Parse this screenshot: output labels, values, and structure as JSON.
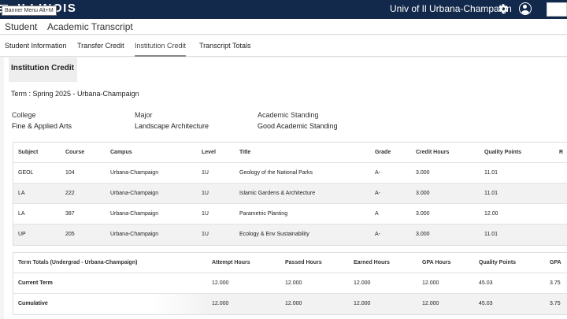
{
  "topbar": {
    "logo": "ILLINOIS",
    "tooltip": "Banner Menu Alt+M",
    "institution": "Univ of Il Urbana-Champaign",
    "icons": [
      "menu-icon",
      "gear-icon",
      "user-icon"
    ],
    "color": "#13294b"
  },
  "breadcrumb": {
    "root": "Student",
    "page": "Academic Transcript"
  },
  "tabs": [
    {
      "label": "Student Information",
      "active": false
    },
    {
      "label": "Transfer Credit",
      "active": false
    },
    {
      "label": "Institution Credit",
      "active": true
    },
    {
      "label": "Transcript Totals",
      "active": false
    }
  ],
  "section": {
    "title": "Institution Credit",
    "term": "Term : Spring 2025 - Urbana-Champaign",
    "college_label": "College",
    "college": "Fine & Applied Arts",
    "major_label": "Major",
    "major": "Landscape Architecture",
    "standing_label": "Academic Standing",
    "standing": "Good Academic Standing"
  },
  "courses": {
    "headers": [
      "Subject",
      "Course",
      "Campus",
      "Level",
      "Title",
      "Grade",
      "Credit Hours",
      "Quality Points",
      "R"
    ],
    "rows": [
      [
        "GEOL",
        "104",
        "Urbana-Champaign",
        "1U",
        "Geology of the National Parks",
        "A-",
        "3.000",
        "11.01"
      ],
      [
        "LA",
        "222",
        "Urbana-Champaign",
        "1U",
        "Islamic Gardens & Architecture",
        "A-",
        "3.000",
        "11.01"
      ],
      [
        "LA",
        "387",
        "Urbana-Champaign",
        "1U",
        "Parametric Planting",
        "A",
        "3.000",
        "12.00"
      ],
      [
        "UP",
        "205",
        "Urbana-Champaign",
        "1U",
        "Ecology & Env Sustainability",
        "A-",
        "3.000",
        "11.01"
      ]
    ]
  },
  "totals": {
    "headers": [
      "Term Totals (Undergrad - Urbana-Champaign)",
      "Attempt Hours",
      "Passed Hours",
      "Earned Hours",
      "GPA Hours",
      "Quality Points",
      "GPA"
    ],
    "rows": [
      [
        "Current Term",
        "12.000",
        "12.000",
        "12.000",
        "12.000",
        "45.03",
        "3.75"
      ],
      [
        "Cumulative",
        "12.000",
        "12.000",
        "12.000",
        "12.000",
        "45.03",
        "3.75"
      ]
    ]
  }
}
